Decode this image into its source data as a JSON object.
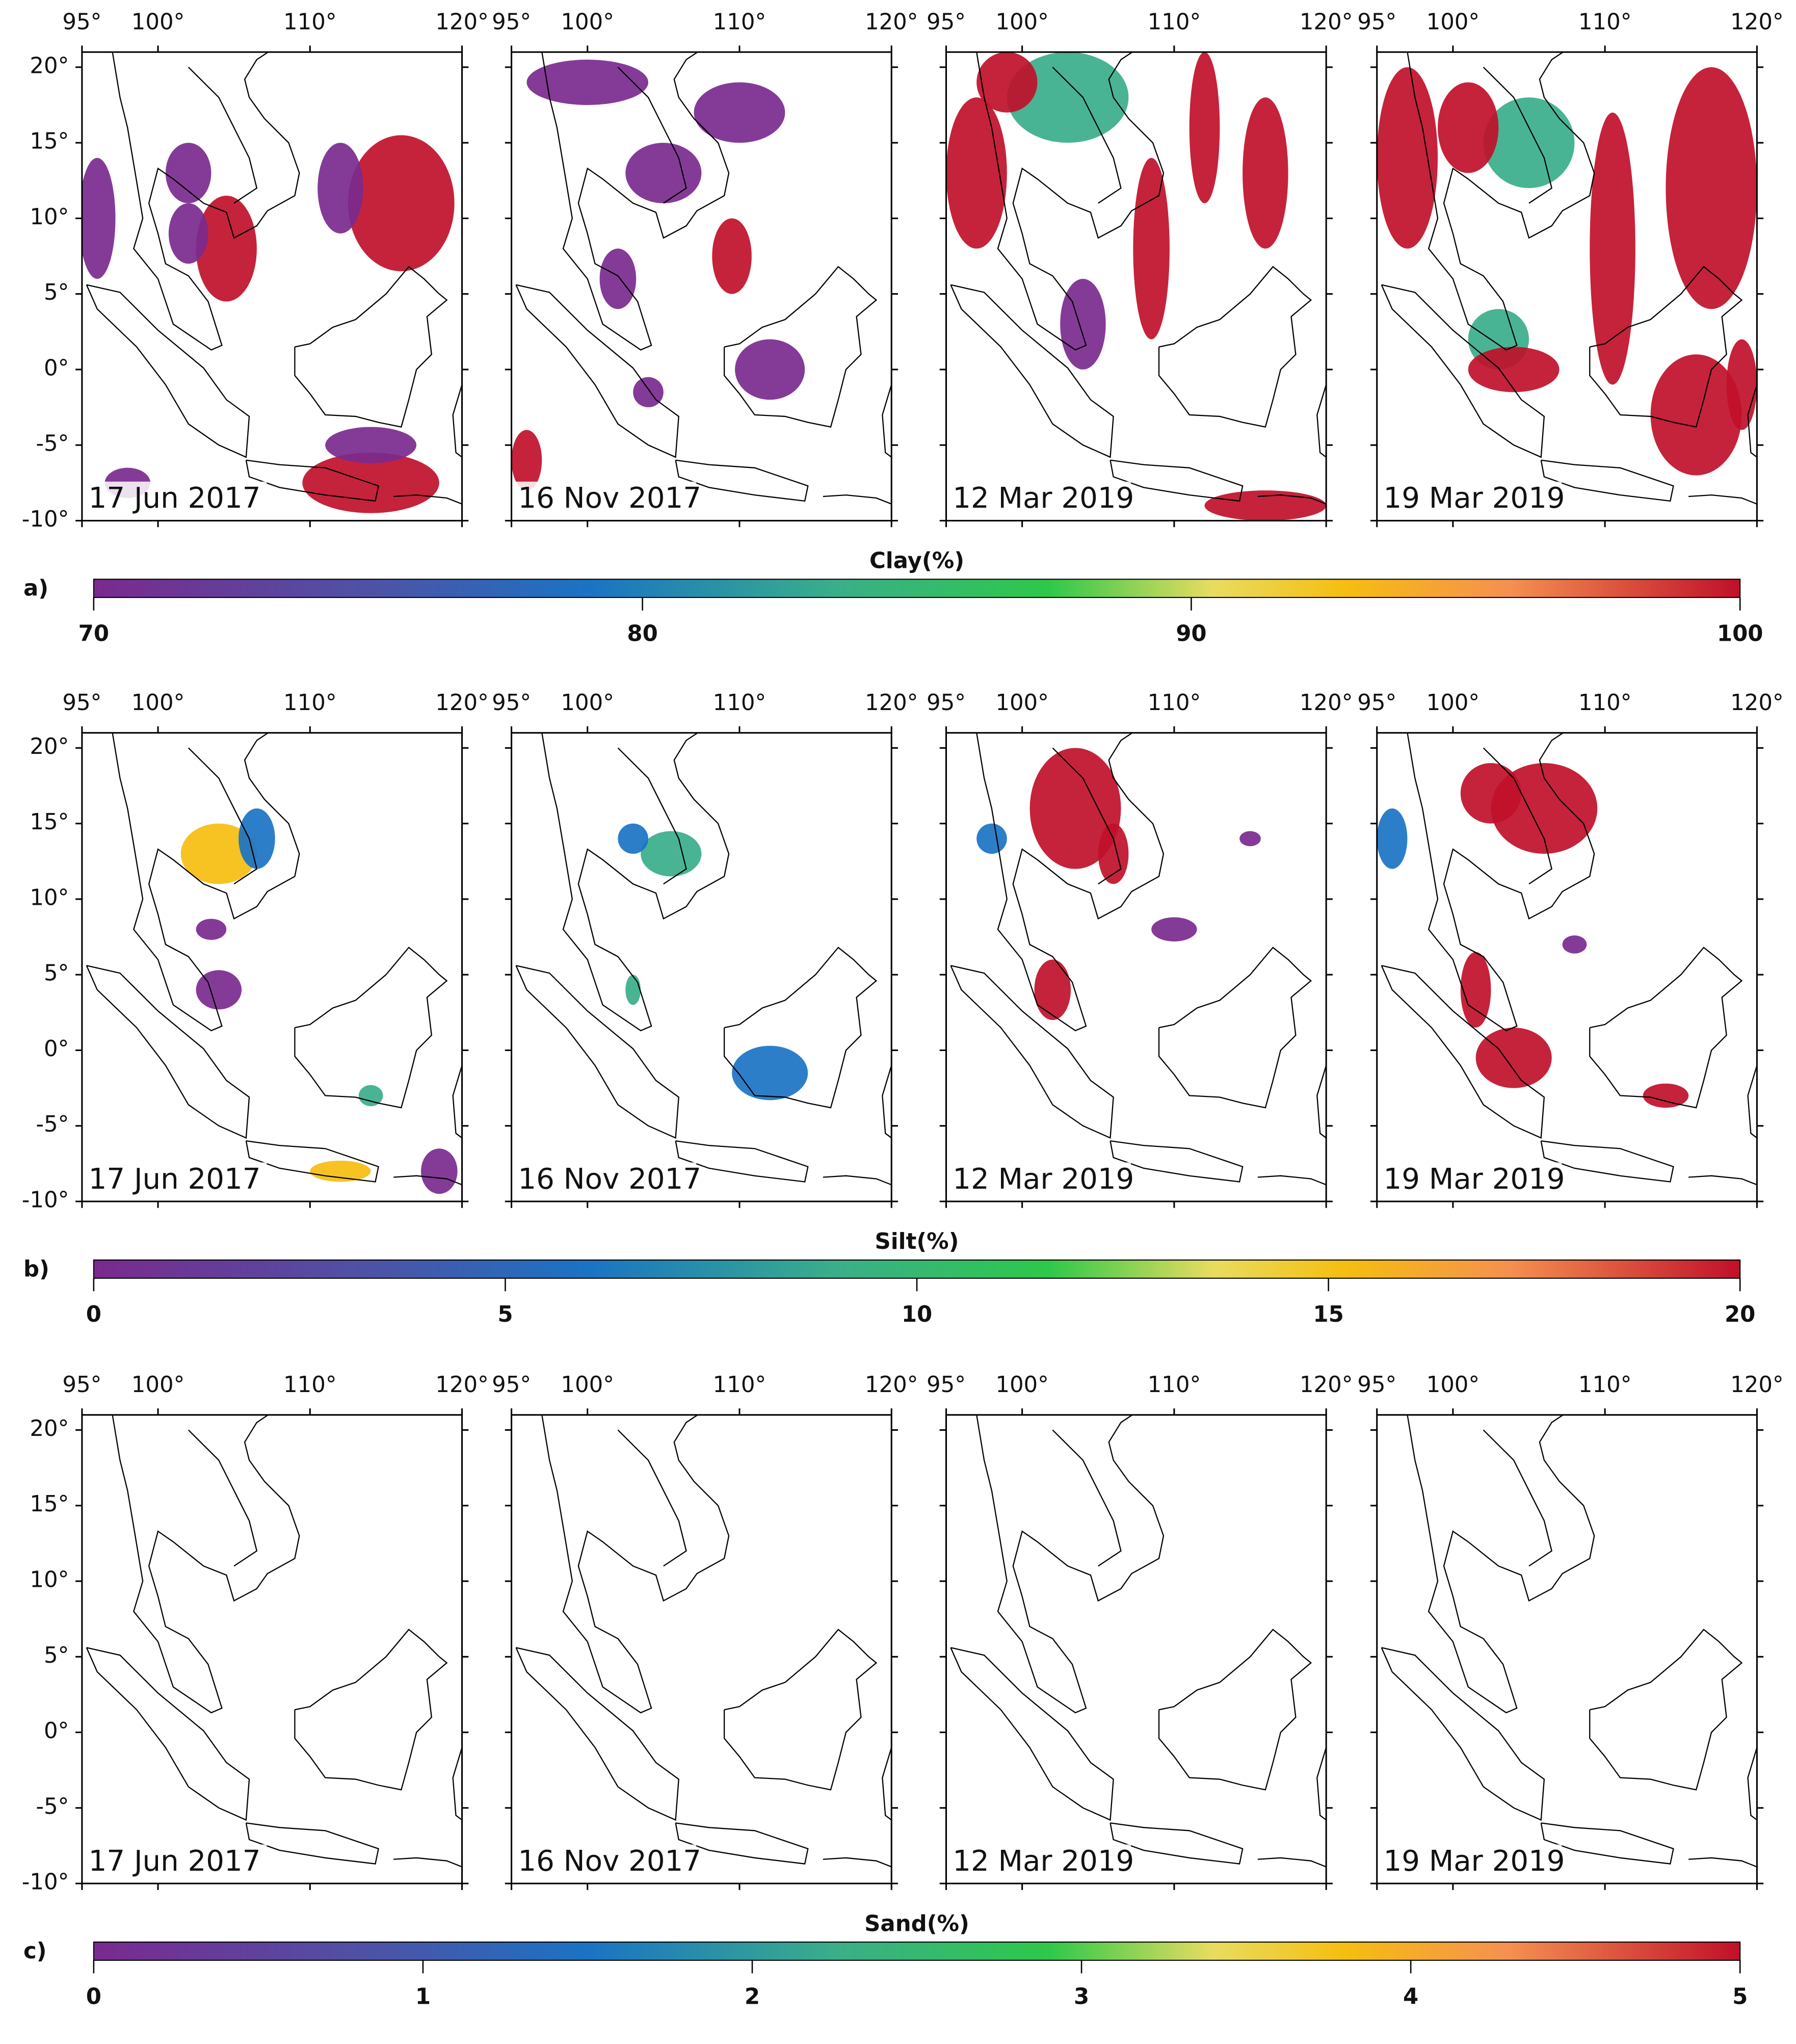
{
  "figure": {
    "lon_axis": {
      "lim": [
        95,
        120
      ],
      "ticks": [
        {
          "value": 95,
          "label": "95°"
        },
        {
          "value": 100,
          "label": "100°"
        },
        {
          "value": 110,
          "label": "110°"
        },
        {
          "value": 120,
          "label": "120°"
        }
      ]
    },
    "lat_axis": {
      "lim": [
        -10,
        21
      ],
      "ticks": [
        {
          "value": 20,
          "label": "20°"
        },
        {
          "value": 15,
          "label": "15°"
        },
        {
          "value": 10,
          "label": "10°"
        },
        {
          "value": 5,
          "label": "5°"
        },
        {
          "value": 0,
          "label": "0°"
        },
        {
          "value": -5,
          "label": "-5°"
        },
        {
          "value": -10,
          "label": "-10°"
        }
      ]
    },
    "dates": [
      "17 Jun 2017",
      "16 Nov 2017",
      "12 Mar 2019",
      "19 Mar 2019"
    ],
    "rows": [
      {
        "label": "a)",
        "colorbar": {
          "title": "Clay(%)",
          "lim": [
            70,
            100
          ],
          "ticks": [
            70,
            80,
            90,
            100
          ]
        }
      },
      {
        "label": "b)",
        "colorbar": {
          "title": "Silt(%)",
          "lim": [
            0,
            20
          ],
          "ticks": [
            0,
            5,
            10,
            15,
            20
          ]
        }
      },
      {
        "label": "c)",
        "colorbar": {
          "title": "Sand(%)",
          "lim": [
            0,
            5
          ],
          "ticks": [
            0,
            1,
            2,
            3,
            4,
            5
          ]
        }
      }
    ]
  }
}
